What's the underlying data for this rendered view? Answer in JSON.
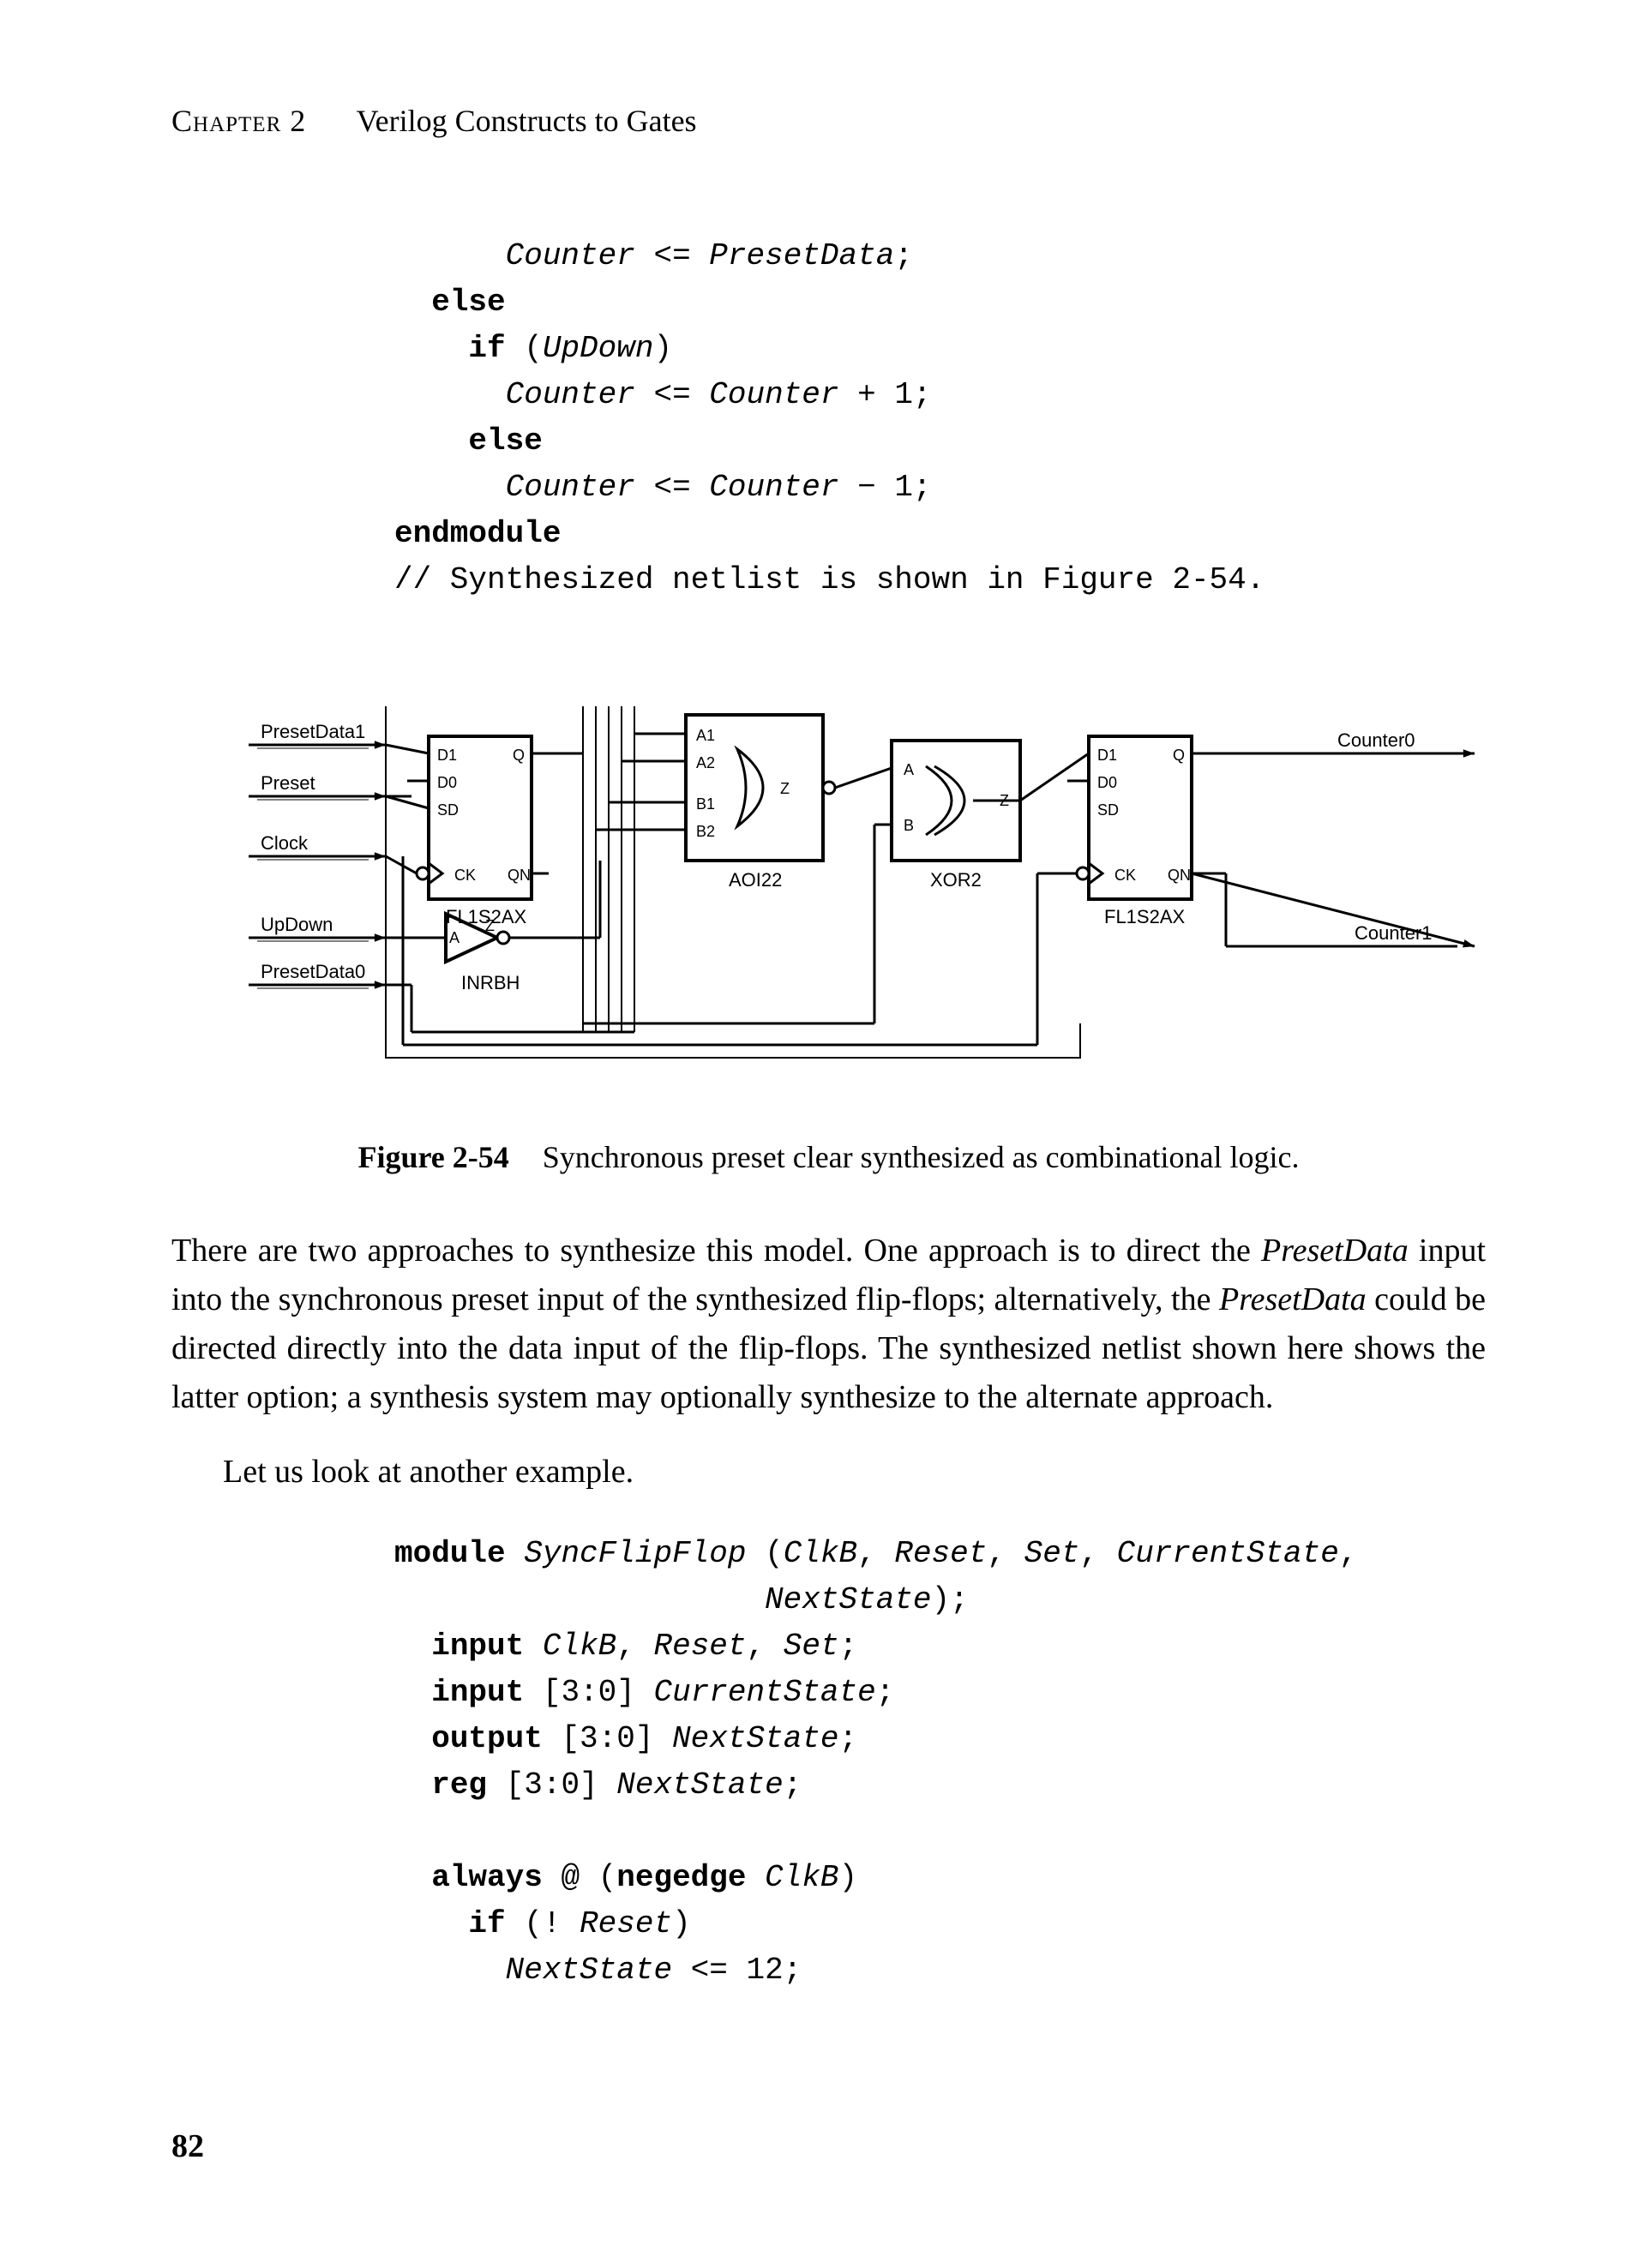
{
  "colors": {
    "ink": "#000000",
    "paper": "#ffffff"
  },
  "typography": {
    "body_family": "Times New Roman",
    "body_size_pt": 12,
    "code_family": "Courier New",
    "code_size_pt": 11,
    "svg_label_family": "Arial"
  },
  "header": {
    "chapter_label": "Chapter 2",
    "chapter_title": "Verilog Constructs to Gates"
  },
  "code_top": {
    "lines": [
      {
        "indent": 3,
        "tokens": [
          {
            "t": "id",
            "v": "Counter"
          },
          {
            "t": "",
            "v": " <= "
          },
          {
            "t": "id",
            "v": "PresetData"
          },
          {
            "t": "",
            "v": ";"
          }
        ]
      },
      {
        "indent": 1,
        "tokens": [
          {
            "t": "kw",
            "v": "else"
          }
        ]
      },
      {
        "indent": 2,
        "tokens": [
          {
            "t": "kw",
            "v": "if"
          },
          {
            "t": "",
            "v": " ("
          },
          {
            "t": "id",
            "v": "UpDown"
          },
          {
            "t": "",
            "v": ")"
          }
        ]
      },
      {
        "indent": 3,
        "tokens": [
          {
            "t": "id",
            "v": "Counter"
          },
          {
            "t": "",
            "v": " <= "
          },
          {
            "t": "id",
            "v": "Counter"
          },
          {
            "t": "",
            "v": " + 1;"
          }
        ]
      },
      {
        "indent": 2,
        "tokens": [
          {
            "t": "kw",
            "v": "else"
          }
        ]
      },
      {
        "indent": 3,
        "tokens": [
          {
            "t": "id",
            "v": "Counter"
          },
          {
            "t": "",
            "v": " <= "
          },
          {
            "t": "id",
            "v": "Counter"
          },
          {
            "t": "",
            "v": " − 1;"
          }
        ]
      },
      {
        "indent": 0,
        "tokens": [
          {
            "t": "kw",
            "v": "endmodule"
          }
        ]
      },
      {
        "indent": 0,
        "tokens": [
          {
            "t": "",
            "v": "// Synthesized netlist is shown in Figure 2-54."
          }
        ]
      }
    ]
  },
  "figure": {
    "label": "Figure 2-54",
    "caption": "Synchronous preset clear synthesized as combinational logic.",
    "inputs": [
      "PresetData1",
      "Preset",
      "Clock",
      "UpDown",
      "PresetData0"
    ],
    "outputs": [
      "Counter0",
      "Counter1"
    ],
    "gates": {
      "ff_left": {
        "type": "FL1S2AX",
        "pins": [
          "D1",
          "D0",
          "SD",
          "CK",
          "Q",
          "QN"
        ]
      },
      "ff_right": {
        "type": "FL1S2AX",
        "pins": [
          "D1",
          "D0",
          "SD",
          "CK",
          "Q",
          "QN"
        ]
      },
      "inv": {
        "type": "INRBH",
        "pins": [
          "A",
          "Z"
        ]
      },
      "aoi": {
        "type": "AOI22",
        "pins": [
          "A1",
          "A2",
          "B1",
          "B2",
          "Z"
        ]
      },
      "xor": {
        "type": "XOR2",
        "pins": [
          "A",
          "B",
          "Z"
        ]
      }
    },
    "stroke": "#000000",
    "stroke_width": 4,
    "stroke_width_thin": 3
  },
  "paragraphs": {
    "p1_a": "There are two approaches to synthesize this model. One approach is to direct the ",
    "p1_i1": "PresetData",
    "p1_b": " input into the synchronous preset input of the synthesized flip-flops; alternatively, the ",
    "p1_i2": "PresetData",
    "p1_c": " could be directed directly into the data input of the flip-flops. The synthesized netlist shown here shows the latter option; a synthesis system may optionally synthesize to the alternate approach.",
    "p2": "Let us look at another example."
  },
  "code_bottom": {
    "lines": [
      {
        "indent": 0,
        "tokens": [
          {
            "t": "kw",
            "v": "module"
          },
          {
            "t": "",
            "v": " "
          },
          {
            "t": "id",
            "v": "SyncFlipFlop"
          },
          {
            "t": "",
            "v": " ("
          },
          {
            "t": "id",
            "v": "ClkB"
          },
          {
            "t": "",
            "v": ", "
          },
          {
            "t": "id",
            "v": "Reset"
          },
          {
            "t": "",
            "v": ", "
          },
          {
            "t": "id",
            "v": "Set"
          },
          {
            "t": "",
            "v": ", "
          },
          {
            "t": "id",
            "v": "CurrentState"
          },
          {
            "t": "",
            "v": ","
          }
        ]
      },
      {
        "indent": 10,
        "tokens": [
          {
            "t": "id",
            "v": "NextState"
          },
          {
            "t": "",
            "v": ");"
          }
        ]
      },
      {
        "indent": 1,
        "tokens": [
          {
            "t": "kw",
            "v": "input"
          },
          {
            "t": "",
            "v": " "
          },
          {
            "t": "id",
            "v": "ClkB"
          },
          {
            "t": "",
            "v": ", "
          },
          {
            "t": "id",
            "v": "Reset"
          },
          {
            "t": "",
            "v": ", "
          },
          {
            "t": "id",
            "v": "Set"
          },
          {
            "t": "",
            "v": ";"
          }
        ]
      },
      {
        "indent": 1,
        "tokens": [
          {
            "t": "kw",
            "v": "input"
          },
          {
            "t": "",
            "v": " [3:0] "
          },
          {
            "t": "id",
            "v": "CurrentState"
          },
          {
            "t": "",
            "v": ";"
          }
        ]
      },
      {
        "indent": 1,
        "tokens": [
          {
            "t": "kw",
            "v": "output"
          },
          {
            "t": "",
            "v": " [3:0] "
          },
          {
            "t": "id",
            "v": "NextState"
          },
          {
            "t": "",
            "v": ";"
          }
        ]
      },
      {
        "indent": 1,
        "tokens": [
          {
            "t": "kw",
            "v": "reg"
          },
          {
            "t": "",
            "v": " [3:0] "
          },
          {
            "t": "id",
            "v": "NextState"
          },
          {
            "t": "",
            "v": ";"
          }
        ]
      },
      {
        "indent": 0,
        "tokens": [
          {
            "t": "",
            "v": ""
          }
        ]
      },
      {
        "indent": 1,
        "tokens": [
          {
            "t": "kw",
            "v": "always"
          },
          {
            "t": "",
            "v": " @ ("
          },
          {
            "t": "kw",
            "v": "negedge"
          },
          {
            "t": "",
            "v": " "
          },
          {
            "t": "id",
            "v": "ClkB"
          },
          {
            "t": "",
            "v": ")"
          }
        ]
      },
      {
        "indent": 2,
        "tokens": [
          {
            "t": "kw",
            "v": "if"
          },
          {
            "t": "",
            "v": " (! "
          },
          {
            "t": "id",
            "v": "Reset"
          },
          {
            "t": "",
            "v": ")"
          }
        ]
      },
      {
        "indent": 3,
        "tokens": [
          {
            "t": "id",
            "v": "NextState"
          },
          {
            "t": "",
            "v": " <= 12;"
          }
        ]
      }
    ]
  },
  "page_number": "82"
}
